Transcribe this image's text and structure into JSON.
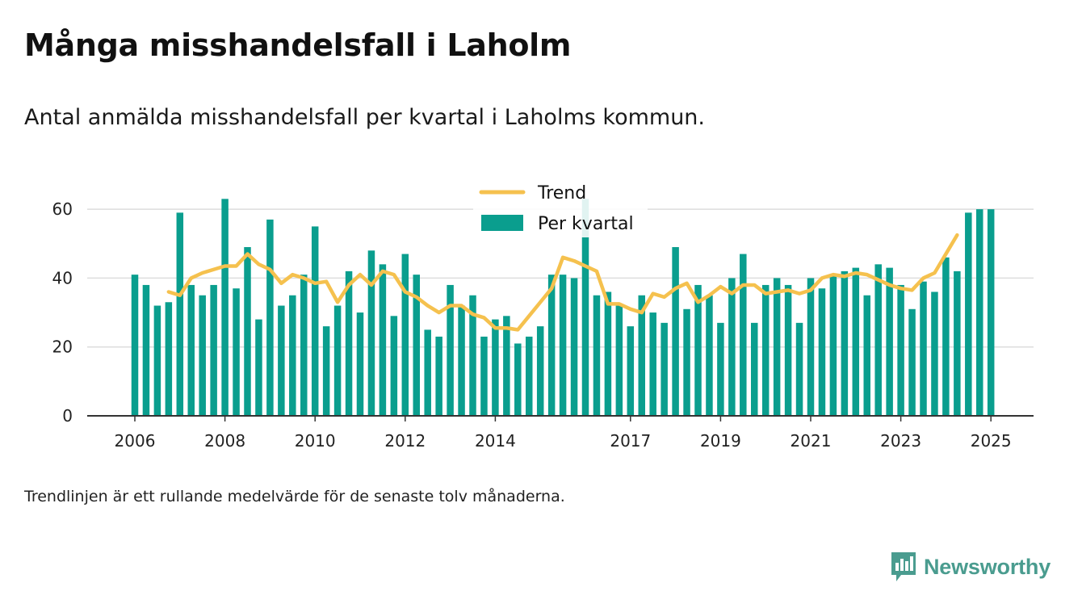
{
  "title": "Många misshandelsfall i Laholm",
  "subtitle": "Antal anmälda misshandelsfall per kvartal i Laholms kommun.",
  "footnote": "Trendlinjen är ett rullande medelvärde för de senaste tolv månaderna.",
  "brand": "Newsworthy",
  "colors": {
    "bars": "#0a9e8e",
    "trend": "#f5c14e",
    "grid": "#dddddd",
    "axis": "#333333",
    "brand": "#4a9c8f"
  },
  "chart_data": {
    "type": "bar",
    "x": [
      "2006-Q1",
      "2006-Q2",
      "2006-Q3",
      "2006-Q4",
      "2007-Q1",
      "2007-Q2",
      "2007-Q3",
      "2007-Q4",
      "2008-Q1",
      "2008-Q2",
      "2008-Q3",
      "2008-Q4",
      "2009-Q1",
      "2009-Q2",
      "2009-Q3",
      "2009-Q4",
      "2010-Q1",
      "2010-Q2",
      "2010-Q3",
      "2010-Q4",
      "2011-Q1",
      "2011-Q2",
      "2011-Q3",
      "2011-Q4",
      "2012-Q1",
      "2012-Q2",
      "2012-Q3",
      "2012-Q4",
      "2013-Q1",
      "2013-Q2",
      "2013-Q3",
      "2013-Q4",
      "2014-Q1",
      "2014-Q2",
      "2014-Q3",
      "2014-Q4",
      "2015-Q1",
      "2015-Q2",
      "2015-Q3",
      "2015-Q4",
      "2016-Q1",
      "2016-Q2",
      "2016-Q3",
      "2016-Q4",
      "2017-Q1",
      "2017-Q2",
      "2017-Q3",
      "2017-Q4",
      "2018-Q1",
      "2018-Q2",
      "2018-Q3",
      "2018-Q4",
      "2019-Q1",
      "2019-Q2",
      "2019-Q3",
      "2019-Q4",
      "2020-Q1",
      "2020-Q2",
      "2020-Q3",
      "2020-Q4",
      "2021-Q1",
      "2021-Q2",
      "2021-Q3",
      "2021-Q4",
      "2022-Q1",
      "2022-Q2",
      "2022-Q3",
      "2022-Q4",
      "2023-Q1",
      "2023-Q2",
      "2023-Q3",
      "2023-Q4",
      "2024-Q1",
      "2024-Q2",
      "2024-Q3",
      "2024-Q4",
      "2025-Q1"
    ],
    "series": [
      {
        "name": "Per kvartal",
        "kind": "bar",
        "values": [
          41,
          38,
          32,
          33,
          59,
          38,
          35,
          38,
          63,
          37,
          49,
          28,
          57,
          32,
          35,
          41,
          55,
          26,
          32,
          42,
          30,
          48,
          44,
          29,
          47,
          41,
          25,
          23,
          38,
          32,
          35,
          23,
          28,
          29,
          21,
          23,
          26,
          41,
          41,
          40,
          63,
          35,
          36,
          32,
          26,
          35,
          30,
          27,
          49,
          31,
          38,
          35,
          27,
          40,
          47,
          27,
          38,
          40,
          38,
          27,
          40,
          37,
          41,
          42,
          43,
          35,
          44,
          43,
          38,
          31,
          39,
          36,
          46,
          42,
          59,
          60,
          60
        ]
      },
      {
        "name": "Trend",
        "kind": "line",
        "values": [
          null,
          null,
          null,
          36,
          35,
          40,
          41.5,
          42.5,
          43.5,
          43.5,
          47,
          44,
          42.5,
          38.5,
          41,
          40,
          38.5,
          39,
          33,
          38,
          41,
          38,
          42,
          41,
          36,
          34.5,
          32,
          30,
          32,
          32,
          29.5,
          28.5,
          25.5,
          25.5,
          25,
          29,
          33,
          37,
          46,
          45,
          43.5,
          42,
          32.5,
          32.5,
          31,
          30,
          35.5,
          34.5,
          37,
          38.5,
          33,
          35,
          37.5,
          35.5,
          38,
          38,
          35.5,
          36,
          36.5,
          35.5,
          36.5,
          40,
          41,
          40.5,
          41.5,
          41,
          39.5,
          38,
          37,
          36.5,
          40,
          41.5,
          47,
          52.5,
          null,
          null,
          null
        ]
      }
    ],
    "xticks": [
      "2006",
      "2008",
      "2010",
      "2012",
      "2014",
      "2017",
      "2019",
      "2021",
      "2023",
      "2025"
    ],
    "yticks": [
      "0",
      "20",
      "40",
      "60"
    ],
    "ylim": [
      0,
      68
    ],
    "grid": "horizontal",
    "legend_placement": "top-center"
  }
}
